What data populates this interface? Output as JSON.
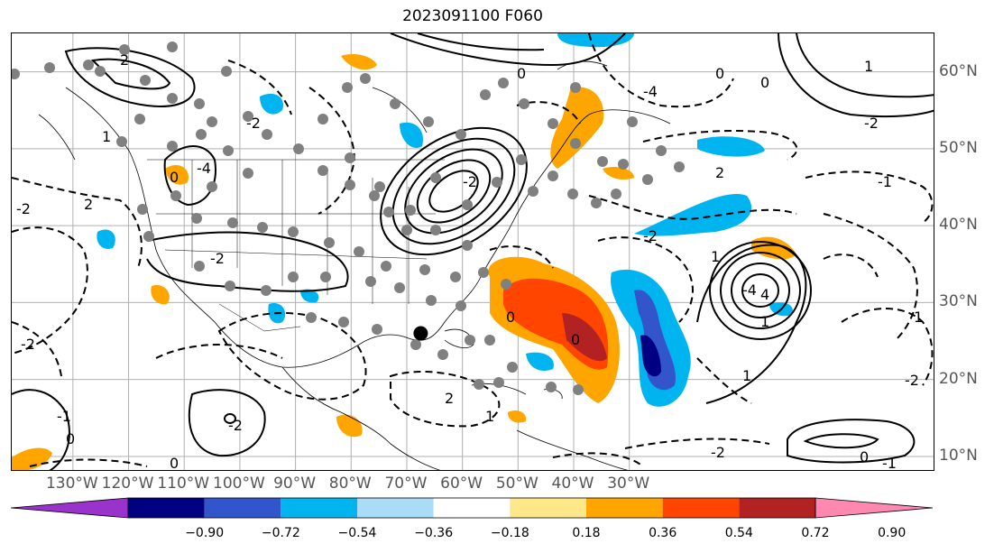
{
  "title": "2023091100 F060",
  "map": {
    "lon_range": [
      -141,
      25
    ],
    "lat_range": [
      8,
      65
    ],
    "lon_labels": [
      "130°W",
      "120°W",
      "110°W",
      "100°W",
      "90°W",
      "80°W",
      "70°W",
      "60°W",
      "50°W",
      "40°W",
      "30°W"
    ],
    "lon_values": [
      -130,
      -120,
      -110,
      -100,
      -90,
      -80,
      -70,
      -60,
      -50,
      -40,
      -30
    ],
    "lat_labels": [
      "10°N",
      "20°N",
      "30°N",
      "40°N",
      "50°N",
      "60°N"
    ],
    "lat_values": [
      10,
      20,
      30,
      40,
      50,
      60
    ],
    "storm_center": {
      "lon": -67.5,
      "lat": 26
    }
  },
  "contour_labels": [
    "2",
    "1",
    "0",
    "-2",
    "-4",
    "2",
    "1",
    "0",
    "-2",
    "-4",
    "4",
    "1",
    "0",
    "-2",
    "2",
    "-2",
    "-1",
    "0",
    "1",
    "-2",
    "-2",
    "0",
    "-2",
    "0",
    "1",
    "-1",
    "0",
    "2",
    "0",
    "-1",
    "-4",
    "-2",
    "-2",
    "1",
    "1",
    "-2",
    "0"
  ],
  "colorbar": {
    "ticks": [
      "−0.90",
      "−0.72",
      "−0.54",
      "−0.36",
      "−0.18",
      "0.18",
      "0.36",
      "0.54",
      "0.72",
      "0.90"
    ],
    "colors": [
      "#9933cc",
      "#000080",
      "#3355cc",
      "#00b4f0",
      "#aadcf8",
      "#ffffff",
      "#ffe88a",
      "#ffa500",
      "#ff4500",
      "#b22222",
      "#ff88b0"
    ]
  }
}
